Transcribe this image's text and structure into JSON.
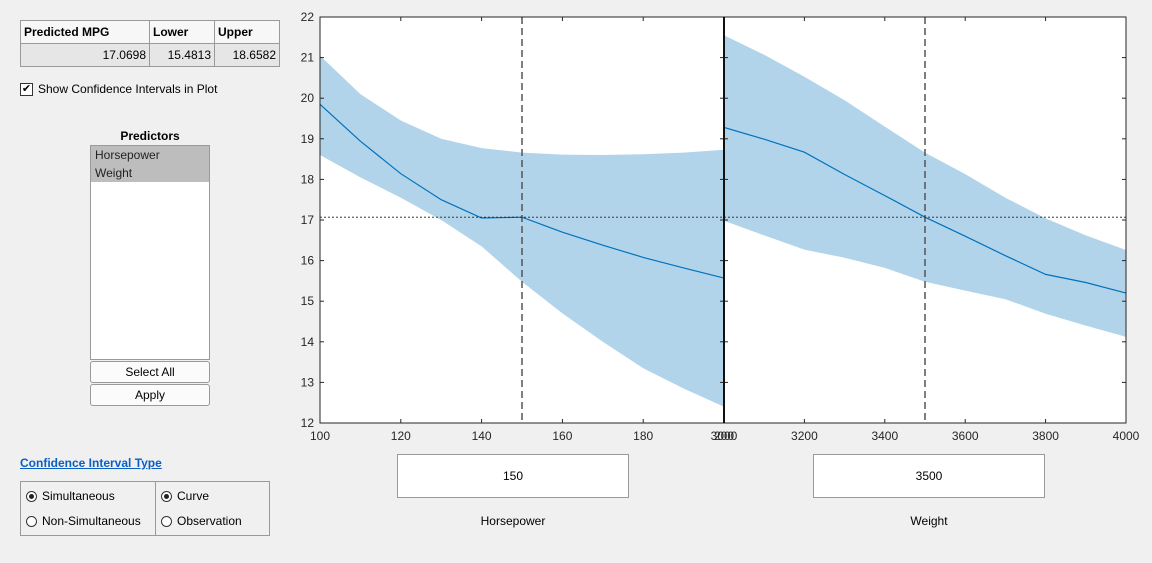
{
  "results_table": {
    "headers": [
      "Predicted MPG",
      "Lower",
      "Upper"
    ],
    "values": [
      "17.0698",
      "15.4813",
      "18.6582"
    ]
  },
  "show_ci": {
    "label": "Show Confidence Intervals in Plot",
    "checked": true
  },
  "predictors": {
    "title": "Predictors",
    "items": [
      "Horsepower",
      "Weight"
    ],
    "select_all_label": "Select All",
    "apply_label": "Apply"
  },
  "ci_type": {
    "link_label": "Confidence Interval Type",
    "group1": {
      "simultaneous": "Simultaneous",
      "non_simultaneous": "Non-Simultaneous",
      "selected": "Simultaneous"
    },
    "group2": {
      "curve": "Curve",
      "observation": "Observation",
      "selected": "Curve"
    }
  },
  "colors": {
    "band": "#b2d4ea",
    "line": "#0072bd",
    "link": "#0a5fc4"
  },
  "panels": [
    {
      "input_value": "150",
      "xlabel": "Horsepower"
    },
    {
      "input_value": "3500",
      "xlabel": "Weight"
    }
  ],
  "chart_data": [
    {
      "type": "line",
      "x_name": "Horsepower",
      "xlim": [
        100,
        200
      ],
      "ylim": [
        12,
        22
      ],
      "xticks": [
        100,
        120,
        140,
        160,
        180,
        200
      ],
      "yticks": [
        12,
        13,
        14,
        15,
        16,
        17,
        18,
        19,
        20,
        21,
        22
      ],
      "x": [
        100,
        110,
        120,
        130,
        140,
        150,
        160,
        170,
        180,
        190,
        200
      ],
      "series": [
        {
          "role": "prediction",
          "values": [
            19.85,
            18.94,
            18.14,
            17.5,
            17.05,
            17.07,
            16.7,
            16.38,
            16.08,
            15.82,
            15.57
          ]
        },
        {
          "role": "lower",
          "values": [
            18.6,
            18.05,
            17.55,
            17.0,
            16.35,
            15.48,
            14.7,
            14.0,
            13.35,
            12.85,
            12.4
          ]
        },
        {
          "role": "upper",
          "values": [
            21.05,
            20.1,
            19.45,
            19.0,
            18.77,
            18.66,
            18.61,
            18.6,
            18.62,
            18.66,
            18.73
          ]
        }
      ],
      "current_x": 150,
      "predicted_y": 17.0698
    },
    {
      "type": "line",
      "x_name": "Weight",
      "xlim": [
        3000,
        4000
      ],
      "ylim": [
        12,
        22
      ],
      "xticks": [
        3000,
        3200,
        3400,
        3600,
        3800,
        4000
      ],
      "yticks": [
        12,
        13,
        14,
        15,
        16,
        17,
        18,
        19,
        20,
        21,
        22
      ],
      "x": [
        3000,
        3100,
        3200,
        3300,
        3400,
        3500,
        3600,
        3700,
        3800,
        3900,
        4000
      ],
      "series": [
        {
          "role": "prediction",
          "values": [
            19.28,
            18.99,
            18.67,
            18.12,
            17.6,
            17.07,
            16.6,
            16.12,
            15.66,
            15.46,
            15.2
          ]
        },
        {
          "role": "lower",
          "values": [
            16.98,
            16.62,
            16.27,
            16.07,
            15.82,
            15.48,
            15.26,
            15.05,
            14.69,
            14.4,
            14.12
          ]
        },
        {
          "role": "upper",
          "values": [
            21.55,
            21.07,
            20.53,
            19.95,
            19.3,
            18.66,
            18.13,
            17.55,
            17.04,
            16.62,
            16.26
          ]
        }
      ],
      "current_x": 3500,
      "predicted_y": 17.0698
    }
  ]
}
